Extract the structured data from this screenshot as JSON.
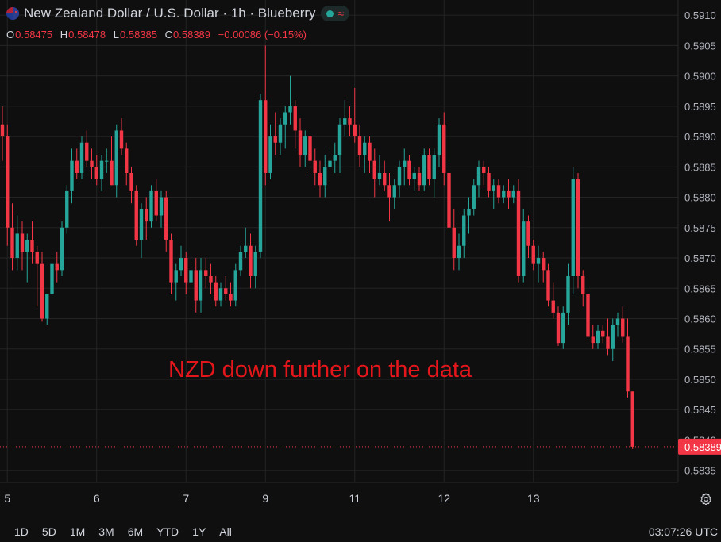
{
  "header": {
    "title": "New Zealand Dollar / U.S. Dollar · 1h · Blueberry",
    "ohlc": [
      {
        "k": "O",
        "v": "0.58475"
      },
      {
        "k": "H",
        "v": "0.58478"
      },
      {
        "k": "L",
        "v": "0.58385"
      },
      {
        "k": "C",
        "v": "0.58389"
      }
    ],
    "change": "−0.00086 (−0.15%)"
  },
  "bottom_bar": {
    "ranges": [
      "1D",
      "5D",
      "1M",
      "3M",
      "6M",
      "YTD",
      "1Y",
      "All"
    ],
    "clock": "03:07:26 UTC"
  },
  "colors": {
    "background": "#0f0f0f",
    "grid": "#242424",
    "up": "#26a69a",
    "down": "#f23645",
    "text": "#d1d4dc",
    "annotation": "#e4161b"
  },
  "chart_data": {
    "type": "candlestick",
    "annotation": "NZD down further on the data",
    "last_price": "0.58389",
    "y_ticks": [
      "0.5910",
      "0.5905",
      "0.5900",
      "0.5895",
      "0.5890",
      "0.5885",
      "0.5880",
      "0.5875",
      "0.5870",
      "0.5865",
      "0.5860",
      "0.5855",
      "0.5850",
      "0.5845",
      "0.5840",
      "0.5835"
    ],
    "ylim": [
      0.5833,
      0.59125
    ],
    "x_ticks": [
      {
        "label": "5",
        "index": 1
      },
      {
        "label": "6",
        "index": 19
      },
      {
        "label": "7",
        "index": 37
      },
      {
        "label": "9",
        "index": 53
      },
      {
        "label": "11",
        "index": 71
      },
      {
        "label": "12",
        "index": 89
      },
      {
        "label": "13",
        "index": 107
      }
    ],
    "candles": [
      [
        0.5892,
        0.5895,
        0.5886,
        0.589
      ],
      [
        0.589,
        0.5892,
        0.5872,
        0.5875
      ],
      [
        0.5875,
        0.5879,
        0.5868,
        0.587
      ],
      [
        0.587,
        0.5877,
        0.5868,
        0.5874
      ],
      [
        0.5874,
        0.5876,
        0.5868,
        0.5871
      ],
      [
        0.5871,
        0.5874,
        0.5866,
        0.5873
      ],
      [
        0.5873,
        0.5876,
        0.5869,
        0.5871
      ],
      [
        0.5871,
        0.5872,
        0.5862,
        0.5869
      ],
      [
        0.5869,
        0.5871,
        0.58595,
        0.586
      ],
      [
        0.586,
        0.5864,
        0.5859,
        0.5864
      ],
      [
        0.5864,
        0.587,
        0.5864,
        0.5869
      ],
      [
        0.5869,
        0.5871,
        0.5866,
        0.5868
      ],
      [
        0.5868,
        0.5876,
        0.5867,
        0.5875
      ],
      [
        0.5875,
        0.5882,
        0.5874,
        0.5881
      ],
      [
        0.5881,
        0.5888,
        0.5879,
        0.5886
      ],
      [
        0.5886,
        0.5888,
        0.5883,
        0.5884
      ],
      [
        0.5884,
        0.589,
        0.5883,
        0.5889
      ],
      [
        0.5889,
        0.5891,
        0.5885,
        0.5886
      ],
      [
        0.5886,
        0.5888,
        0.5883,
        0.5885
      ],
      [
        0.5885,
        0.5887,
        0.5882,
        0.5883
      ],
      [
        0.5883,
        0.5887,
        0.5881,
        0.5886
      ],
      [
        0.5886,
        0.5888,
        0.5884,
        0.5886
      ],
      [
        0.5886,
        0.589,
        0.5882,
        0.5882
      ],
      [
        0.5882,
        0.5892,
        0.588,
        0.5891
      ],
      [
        0.5891,
        0.5893,
        0.5887,
        0.5888
      ],
      [
        0.5888,
        0.5889,
        0.5882,
        0.5884
      ],
      [
        0.5884,
        0.5885,
        0.5879,
        0.5881
      ],
      [
        0.5881,
        0.5882,
        0.5872,
        0.5873
      ],
      [
        0.5873,
        0.5879,
        0.587,
        0.5878
      ],
      [
        0.5878,
        0.588,
        0.5873,
        0.5876
      ],
      [
        0.5876,
        0.5882,
        0.5875,
        0.5881
      ],
      [
        0.5881,
        0.5883,
        0.5876,
        0.5877
      ],
      [
        0.5877,
        0.5881,
        0.5875,
        0.588
      ],
      [
        0.588,
        0.5881,
        0.5871,
        0.5873
      ],
      [
        0.5873,
        0.5874,
        0.5864,
        0.5866
      ],
      [
        0.5866,
        0.5869,
        0.5863,
        0.5868
      ],
      [
        0.5868,
        0.5872,
        0.5867,
        0.587
      ],
      [
        0.587,
        0.5871,
        0.5864,
        0.5866
      ],
      [
        0.5866,
        0.5869,
        0.5862,
        0.5868
      ],
      [
        0.5868,
        0.587,
        0.5861,
        0.5863
      ],
      [
        0.5863,
        0.587,
        0.5861,
        0.5868
      ],
      [
        0.5868,
        0.587,
        0.5865,
        0.5867
      ],
      [
        0.5867,
        0.5869,
        0.5864,
        0.5866
      ],
      [
        0.5866,
        0.5867,
        0.5862,
        0.5863
      ],
      [
        0.5863,
        0.5866,
        0.5862,
        0.5865
      ],
      [
        0.5865,
        0.5867,
        0.5863,
        0.5864
      ],
      [
        0.5864,
        0.5866,
        0.5862,
        0.5863
      ],
      [
        0.5863,
        0.5869,
        0.5862,
        0.5868
      ],
      [
        0.5868,
        0.5872,
        0.5867,
        0.5871
      ],
      [
        0.5871,
        0.5875,
        0.587,
        0.5872
      ],
      [
        0.5872,
        0.5874,
        0.5865,
        0.5867
      ],
      [
        0.5867,
        0.5872,
        0.5865,
        0.5871
      ],
      [
        0.5871,
        0.5897,
        0.587,
        0.5896
      ],
      [
        0.5896,
        0.5905,
        0.5882,
        0.5884
      ],
      [
        0.5884,
        0.5892,
        0.5883,
        0.589
      ],
      [
        0.589,
        0.5894,
        0.5887,
        0.5889
      ],
      [
        0.5889,
        0.5893,
        0.5887,
        0.5892
      ],
      [
        0.5892,
        0.5895,
        0.5888,
        0.5894
      ],
      [
        0.5894,
        0.59,
        0.5892,
        0.5895
      ],
      [
        0.5895,
        0.5896,
        0.5888,
        0.5891
      ],
      [
        0.5891,
        0.5893,
        0.5885,
        0.5887
      ],
      [
        0.5887,
        0.5891,
        0.5885,
        0.589
      ],
      [
        0.589,
        0.5891,
        0.5884,
        0.5886
      ],
      [
        0.5886,
        0.5888,
        0.5882,
        0.5884
      ],
      [
        0.5884,
        0.5886,
        0.588,
        0.5882
      ],
      [
        0.5882,
        0.5887,
        0.588,
        0.5885
      ],
      [
        0.5885,
        0.5888,
        0.5883,
        0.5886
      ],
      [
        0.5886,
        0.5889,
        0.5884,
        0.5887
      ],
      [
        0.5887,
        0.5893,
        0.5884,
        0.5892
      ],
      [
        0.5892,
        0.5896,
        0.589,
        0.5893
      ],
      [
        0.5893,
        0.5895,
        0.589,
        0.5892
      ],
      [
        0.5892,
        0.5898,
        0.5889,
        0.589
      ],
      [
        0.589,
        0.5892,
        0.5885,
        0.5887
      ],
      [
        0.5887,
        0.589,
        0.5884,
        0.5889
      ],
      [
        0.5889,
        0.589,
        0.5884,
        0.5886
      ],
      [
        0.5886,
        0.5888,
        0.588,
        0.5883
      ],
      [
        0.5883,
        0.5887,
        0.5882,
        0.5884
      ],
      [
        0.5884,
        0.5886,
        0.5881,
        0.5882
      ],
      [
        0.5882,
        0.5884,
        0.5876,
        0.588
      ],
      [
        0.588,
        0.5883,
        0.5878,
        0.5882
      ],
      [
        0.5882,
        0.5886,
        0.588,
        0.5885
      ],
      [
        0.5885,
        0.5888,
        0.5882,
        0.5886
      ],
      [
        0.5886,
        0.5887,
        0.5882,
        0.5883
      ],
      [
        0.5883,
        0.5885,
        0.5881,
        0.5884
      ],
      [
        0.5884,
        0.5885,
        0.5881,
        0.5882
      ],
      [
        0.5882,
        0.5888,
        0.5881,
        0.5887
      ],
      [
        0.5887,
        0.5888,
        0.5882,
        0.5883
      ],
      [
        0.5883,
        0.5888,
        0.588,
        0.5887
      ],
      [
        0.5887,
        0.5893,
        0.5885,
        0.5892
      ],
      [
        0.5892,
        0.5894,
        0.5882,
        0.5884
      ],
      [
        0.5884,
        0.5886,
        0.5874,
        0.5875
      ],
      [
        0.5875,
        0.5878,
        0.5868,
        0.587
      ],
      [
        0.587,
        0.5874,
        0.5868,
        0.5872
      ],
      [
        0.5872,
        0.5878,
        0.587,
        0.5877
      ],
      [
        0.5877,
        0.588,
        0.5874,
        0.5878
      ],
      [
        0.5878,
        0.5883,
        0.5877,
        0.5882
      ],
      [
        0.5882,
        0.5886,
        0.588,
        0.5885
      ],
      [
        0.5885,
        0.5886,
        0.5882,
        0.5884
      ],
      [
        0.5884,
        0.5885,
        0.588,
        0.5881
      ],
      [
        0.5881,
        0.5883,
        0.5878,
        0.5882
      ],
      [
        0.5882,
        0.5883,
        0.5879,
        0.588
      ],
      [
        0.588,
        0.5882,
        0.5879,
        0.5881
      ],
      [
        0.5881,
        0.5883,
        0.5878,
        0.588
      ],
      [
        0.588,
        0.5882,
        0.5879,
        0.5881
      ],
      [
        0.5881,
        0.5883,
        0.5866,
        0.5867
      ],
      [
        0.5867,
        0.5878,
        0.5866,
        0.5876
      ],
      [
        0.5876,
        0.5877,
        0.587,
        0.5872
      ],
      [
        0.5872,
        0.5873,
        0.5868,
        0.5869
      ],
      [
        0.5869,
        0.5872,
        0.5866,
        0.587
      ],
      [
        0.587,
        0.5871,
        0.5866,
        0.5868
      ],
      [
        0.5868,
        0.5869,
        0.5862,
        0.5863
      ],
      [
        0.5863,
        0.5866,
        0.586,
        0.5861
      ],
      [
        0.5861,
        0.5862,
        0.58555,
        0.5856
      ],
      [
        0.5856,
        0.5862,
        0.5855,
        0.5861
      ],
      [
        0.5861,
        0.5869,
        0.5859,
        0.5867
      ],
      [
        0.5867,
        0.5885,
        0.5864,
        0.5883
      ],
      [
        0.5883,
        0.5884,
        0.5865,
        0.5867
      ],
      [
        0.5867,
        0.5868,
        0.5862,
        0.5864
      ],
      [
        0.5864,
        0.5865,
        0.5856,
        0.5857
      ],
      [
        0.5857,
        0.5859,
        0.5855,
        0.5856
      ],
      [
        0.5856,
        0.5859,
        0.5855,
        0.5858
      ],
      [
        0.5858,
        0.5859,
        0.5856,
        0.5857
      ],
      [
        0.5857,
        0.586,
        0.5854,
        0.5855
      ],
      [
        0.5855,
        0.586,
        0.5853,
        0.5859
      ],
      [
        0.5859,
        0.5861,
        0.5857,
        0.586
      ],
      [
        0.586,
        0.5862,
        0.5856,
        0.5857
      ],
      [
        0.5857,
        0.586,
        0.5847,
        0.5848
      ],
      [
        0.5848,
        0.5848,
        0.58385,
        0.58389
      ]
    ]
  }
}
